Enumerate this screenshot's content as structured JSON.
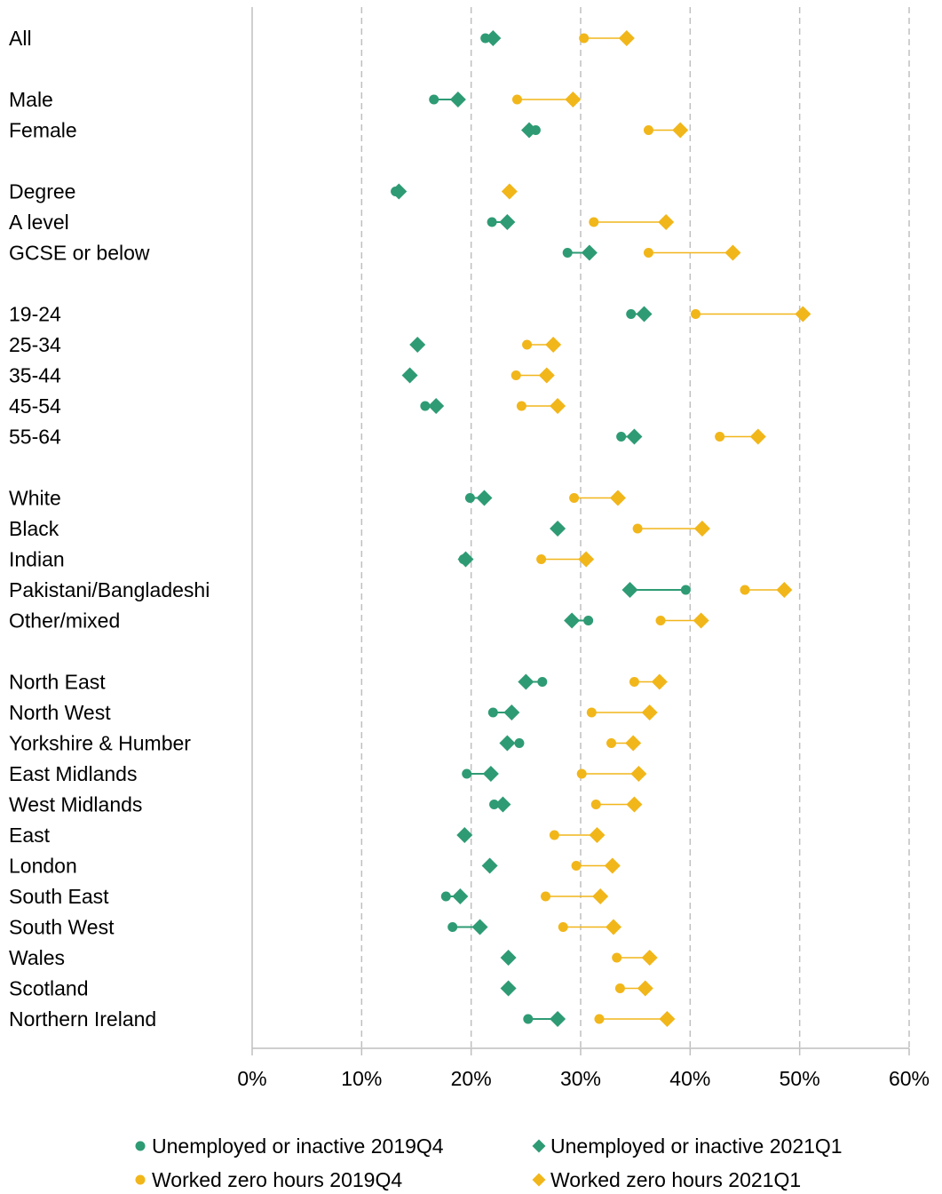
{
  "chart_data": {
    "type": "scatter",
    "variant": "dumbbell",
    "orientation": "horizontal",
    "xlim": [
      0,
      60
    ],
    "x_ticks": [
      0,
      10,
      20,
      30,
      40,
      50,
      60
    ],
    "x_tick_labels": [
      "0%",
      "10%",
      "20%",
      "30%",
      "40%",
      "50%",
      "60%"
    ],
    "grid": "vertical dashed",
    "legend_position": "bottom",
    "colors": {
      "green": "#2e9b74",
      "yellow": "#f1b61a",
      "axis": "#bfbfbf",
      "grid": "#bfbfbf"
    },
    "rows": [
      {
        "label": "All",
        "ue2019": 21.3,
        "ue2021": 22.0,
        "zh2019": 30.3,
        "zh2021": 34.2
      },
      {
        "label": "",
        "gap": true
      },
      {
        "label": "Male",
        "ue2019": 16.6,
        "ue2021": 18.8,
        "zh2019": 24.2,
        "zh2021": 29.3
      },
      {
        "label": "Female",
        "ue2019": 25.9,
        "ue2021": 25.3,
        "zh2019": 36.2,
        "zh2021": 39.1
      },
      {
        "label": "",
        "gap": true
      },
      {
        "label": "Degree",
        "ue2019": 13.1,
        "ue2021": 13.4,
        "zh2019": 23.5,
        "zh2021": 23.5
      },
      {
        "label": "A level",
        "ue2019": 21.9,
        "ue2021": 23.3,
        "zh2019": 31.2,
        "zh2021": 37.8
      },
      {
        "label": "GCSE or below",
        "ue2019": 28.8,
        "ue2021": 30.8,
        "zh2019": 36.2,
        "zh2021": 43.9
      },
      {
        "label": "",
        "gap": true
      },
      {
        "label": "19-24",
        "ue2019": 34.6,
        "ue2021": 35.8,
        "zh2019": 40.5,
        "zh2021": 50.3
      },
      {
        "label": "25-34",
        "ue2019": 15.1,
        "ue2021": 15.1,
        "zh2019": 25.1,
        "zh2021": 27.5
      },
      {
        "label": "35-44",
        "ue2019": 14.4,
        "ue2021": 14.4,
        "zh2019": 24.1,
        "zh2021": 26.9
      },
      {
        "label": "45-54",
        "ue2019": 15.8,
        "ue2021": 16.8,
        "zh2019": 24.6,
        "zh2021": 27.9
      },
      {
        "label": "55-64",
        "ue2019": 33.7,
        "ue2021": 34.9,
        "zh2019": 42.7,
        "zh2021": 46.2
      },
      {
        "label": "",
        "gap": true
      },
      {
        "label": "White",
        "ue2019": 19.9,
        "ue2021": 21.2,
        "zh2019": 29.4,
        "zh2021": 33.4
      },
      {
        "label": "Black",
        "ue2019": 27.9,
        "ue2021": 27.9,
        "zh2019": 35.2,
        "zh2021": 41.1
      },
      {
        "label": "Indian",
        "ue2019": 19.3,
        "ue2021": 19.5,
        "zh2019": 26.4,
        "zh2021": 30.5
      },
      {
        "label": "Pakistani/Bangladeshi",
        "ue2019": 39.6,
        "ue2021": 34.5,
        "zh2019": 45.0,
        "zh2021": 48.6
      },
      {
        "label": "Other/mixed",
        "ue2019": 30.7,
        "ue2021": 29.2,
        "zh2019": 37.3,
        "zh2021": 41.0
      },
      {
        "label": "",
        "gap": true
      },
      {
        "label": "North East",
        "ue2019": 26.5,
        "ue2021": 25.0,
        "zh2019": 34.9,
        "zh2021": 37.2
      },
      {
        "label": "North West",
        "ue2019": 22.0,
        "ue2021": 23.7,
        "zh2019": 31.0,
        "zh2021": 36.3
      },
      {
        "label": "Yorkshire & Humber",
        "ue2019": 24.4,
        "ue2021": 23.3,
        "zh2019": 32.8,
        "zh2021": 34.8
      },
      {
        "label": "East Midlands",
        "ue2019": 19.6,
        "ue2021": 21.8,
        "zh2019": 30.1,
        "zh2021": 35.3
      },
      {
        "label": "West Midlands",
        "ue2019": 22.1,
        "ue2021": 22.9,
        "zh2019": 31.4,
        "zh2021": 34.9
      },
      {
        "label": "East",
        "ue2019": 19.4,
        "ue2021": 19.4,
        "zh2019": 27.6,
        "zh2021": 31.5
      },
      {
        "label": "London",
        "ue2019": 21.7,
        "ue2021": 21.7,
        "zh2019": 29.6,
        "zh2021": 32.9
      },
      {
        "label": "South East",
        "ue2019": 17.7,
        "ue2021": 19.0,
        "zh2019": 26.8,
        "zh2021": 31.8
      },
      {
        "label": "South West",
        "ue2019": 18.3,
        "ue2021": 20.8,
        "zh2019": 28.4,
        "zh2021": 33.0
      },
      {
        "label": "Wales",
        "ue2019": 23.4,
        "ue2021": 23.4,
        "zh2019": 33.3,
        "zh2021": 36.3
      },
      {
        "label": "Scotland",
        "ue2019": 23.4,
        "ue2021": 23.4,
        "zh2019": 33.6,
        "zh2021": 35.9
      },
      {
        "label": "Northern Ireland",
        "ue2019": 25.2,
        "ue2021": 27.9,
        "zh2019": 31.7,
        "zh2021": 37.9
      }
    ],
    "series": [
      {
        "key": "ue2019",
        "name": "Unemployed or inactive 2019Q4",
        "marker": "circle",
        "color": "#2e9b74"
      },
      {
        "key": "ue2021",
        "name": "Unemployed or inactive 2021Q1",
        "marker": "diamond",
        "color": "#2e9b74"
      },
      {
        "key": "zh2019",
        "name": "Worked zero hours 2019Q4",
        "marker": "circle",
        "color": "#f1b61a"
      },
      {
        "key": "zh2021",
        "name": "Worked zero hours 2021Q1",
        "marker": "diamond",
        "color": "#f1b61a"
      }
    ]
  }
}
